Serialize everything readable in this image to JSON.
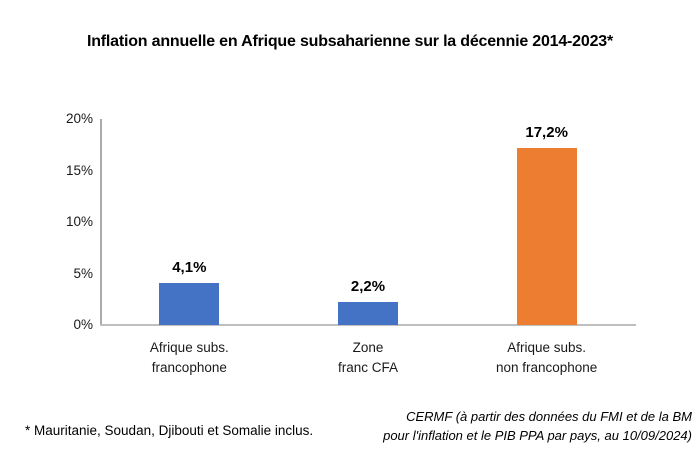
{
  "title": "Inflation annuelle en Afrique subsaharienne sur la décennie 2014-2023*",
  "footnote": "* Mauritanie, Soudan, Djibouti et Somalie inclus.",
  "source": {
    "line1": "CERMF (à partir des données du FMI et de la BM",
    "line2": "pour l'inflation et le PIB PPA par pays, au 10/09/2024)"
  },
  "colors": {
    "bar_blue": "#4472C4",
    "bar_orange": "#ED7D31",
    "axis_gray": "#BFBFBF",
    "text_black": "#000000"
  },
  "chart_data": {
    "type": "bar",
    "title": "Inflation annuelle en Afrique subsaharienne sur la décennie 2014-2023*",
    "categories": [
      "Afrique subs. francophone",
      "Zone franc CFA",
      "Afrique subs. non francophone"
    ],
    "category_lines": [
      [
        "Afrique subs.",
        "francophone"
      ],
      [
        "Zone",
        "franc CFA"
      ],
      [
        "Afrique subs.",
        "non francophone"
      ]
    ],
    "values": [
      4.1,
      2.2,
      17.2
    ],
    "value_labels": [
      "4,1%",
      "2,2%",
      "17,2%"
    ],
    "bar_colors": [
      "#4472C4",
      "#4472C4",
      "#ED7D31"
    ],
    "xlabel": "",
    "ylabel": "",
    "ylim": [
      0,
      20
    ],
    "yticks": [
      0,
      5,
      10,
      15,
      20
    ],
    "ytick_labels": [
      "0%",
      "5%",
      "10%",
      "15%",
      "20%"
    ],
    "grid": false,
    "legend": false
  }
}
